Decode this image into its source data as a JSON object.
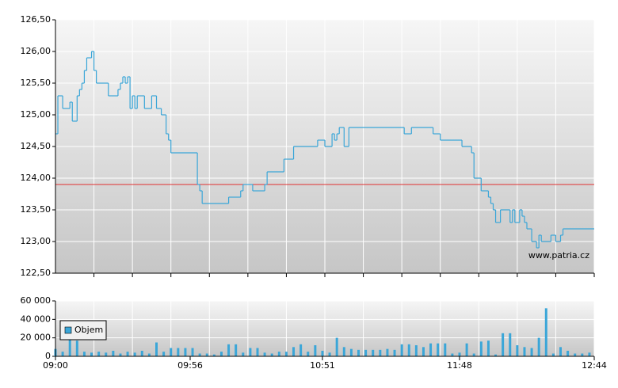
{
  "chart_data": [
    {
      "type": "line",
      "step": true,
      "color": "#3aa6d8",
      "x": [
        0,
        1,
        3,
        6,
        7,
        9,
        10,
        11,
        12,
        13,
        15,
        16,
        17,
        22,
        26,
        27,
        28,
        29,
        30,
        31,
        32,
        33,
        34,
        37,
        40,
        42,
        44,
        46,
        47,
        48,
        59,
        60,
        61,
        72,
        77,
        78,
        82,
        87,
        88,
        95,
        99,
        109,
        112,
        115,
        116,
        117,
        118,
        120,
        122,
        145,
        148,
        157,
        160,
        169,
        173,
        174,
        177,
        180,
        181,
        182,
        183,
        185,
        189,
        190,
        191,
        193,
        194,
        195,
        196,
        198,
        200,
        201,
        202,
        206,
        208,
        210,
        211,
        224
      ],
      "values": [
        124.7,
        125.3,
        125.1,
        125.2,
        124.9,
        125.3,
        125.4,
        125.5,
        125.7,
        125.9,
        126.0,
        125.7,
        125.5,
        125.3,
        125.4,
        125.5,
        125.6,
        125.5,
        125.6,
        125.1,
        125.3,
        125.1,
        125.3,
        125.1,
        125.3,
        125.1,
        125.0,
        124.7,
        124.6,
        124.4,
        123.9,
        123.8,
        123.6,
        123.7,
        123.8,
        123.9,
        123.8,
        123.9,
        124.1,
        124.3,
        124.5,
        124.6,
        124.5,
        124.7,
        124.6,
        124.7,
        124.8,
        124.5,
        124.8,
        124.7,
        124.8,
        124.7,
        124.6,
        124.5,
        124.4,
        124.0,
        123.8,
        123.7,
        123.6,
        123.5,
        123.3,
        123.5,
        123.3,
        123.5,
        123.3,
        123.5,
        123.4,
        123.3,
        123.2,
        123.0,
        122.9,
        123.1,
        123.0,
        123.1,
        123.0,
        123.1,
        123.2,
        123.2
      ],
      "reference_line": {
        "value": 123.9,
        "color": "#e03030"
      },
      "xlim": [
        0,
        224
      ],
      "ylim": [
        122.5,
        126.5
      ],
      "yticks": [
        {
          "value": 122.5,
          "label": "122,50"
        },
        {
          "value": 123,
          "label": "123,00"
        },
        {
          "value": 123.5,
          "label": "123,50"
        },
        {
          "value": 124,
          "label": "124,00"
        },
        {
          "value": 124.5,
          "label": "124,50"
        },
        {
          "value": 125,
          "label": "125,00"
        },
        {
          "value": 125.5,
          "label": "125,50"
        },
        {
          "value": 126,
          "label": "126,00"
        },
        {
          "value": 126.5,
          "label": "126,50"
        }
      ],
      "grid": true,
      "watermark": "www.patria.cz"
    },
    {
      "type": "bar",
      "color": "#3aa6d8",
      "series": [
        {
          "name": "Objem",
          "color": "#3aa6d8",
          "x": [
            0,
            3,
            6,
            9,
            12,
            15,
            18,
            21,
            24,
            27,
            30,
            33,
            36,
            39,
            42,
            45,
            48,
            51,
            54,
            57,
            60,
            63,
            66,
            69,
            72,
            75,
            78,
            81,
            84,
            87,
            90,
            93,
            96,
            99,
            102,
            105,
            108,
            111,
            114,
            117,
            120,
            123,
            126,
            129,
            132,
            135,
            138,
            141,
            144,
            147,
            150,
            153,
            156,
            159,
            162,
            165,
            168,
            171,
            174,
            177,
            180,
            183,
            186,
            189,
            192,
            195,
            198,
            201,
            204,
            207,
            210,
            213,
            216,
            219,
            222
          ],
          "values": [
            8000,
            5000,
            18000,
            17000,
            5000,
            4000,
            5000,
            4000,
            6000,
            3000,
            5000,
            4000,
            6000,
            3000,
            15000,
            5000,
            9000,
            9000,
            9000,
            9000,
            3000,
            3000,
            2000,
            5000,
            13000,
            13000,
            4000,
            9000,
            9000,
            4000,
            3000,
            5000,
            5000,
            10000,
            13000,
            5000,
            12000,
            6000,
            4000,
            20000,
            10000,
            8000,
            7000,
            7000,
            7000,
            7000,
            8000,
            7000,
            13000,
            13000,
            12000,
            10000,
            14000,
            14000,
            14000,
            3000,
            4000,
            14000,
            3000,
            16000,
            17000,
            2000,
            25000,
            25000,
            12000,
            10000,
            9000,
            20000,
            52000,
            3000,
            10000,
            6000,
            3000,
            3000,
            4000
          ]
        }
      ],
      "xlim": [
        0,
        224
      ],
      "xticks": [
        {
          "value": 0,
          "label": "09:00"
        },
        {
          "value": 56,
          "label": "09:56"
        },
        {
          "value": 111,
          "label": "10:51"
        },
        {
          "value": 168,
          "label": "11:48"
        },
        {
          "value": 224,
          "label": "12:44"
        }
      ],
      "ylim": [
        0,
        60000
      ],
      "yticks": [
        0,
        {
          "value": 20000,
          "label": "20 000"
        },
        {
          "value": 40000,
          "label": "40 000"
        },
        {
          "value": 60000,
          "label": "60 000"
        }
      ],
      "grid": true,
      "legend": "upper left"
    }
  ]
}
